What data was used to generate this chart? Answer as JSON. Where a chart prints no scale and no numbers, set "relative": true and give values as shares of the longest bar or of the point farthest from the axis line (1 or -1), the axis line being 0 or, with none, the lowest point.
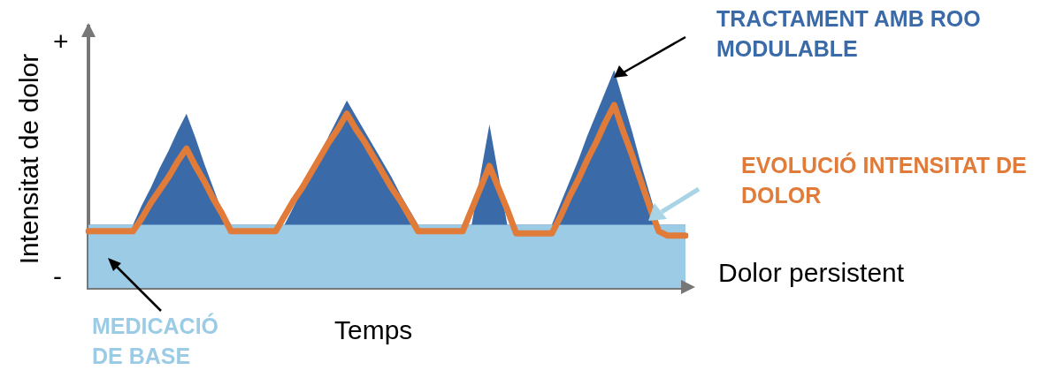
{
  "chart_data": {
    "type": "area",
    "xlabel": "Temps",
    "ylabel": "Intensitat de dolor",
    "relative": true,
    "legend": false,
    "grid": false,
    "categories": [
      null,
      null,
      null,
      null,
      null,
      null,
      null,
      null,
      null,
      null,
      null,
      null,
      null,
      null,
      null,
      null,
      null,
      null,
      null,
      null,
      null,
      null,
      null,
      null,
      null,
      null,
      null,
      null,
      null,
      null,
      null,
      null,
      null,
      null,
      null,
      null,
      null,
      null,
      null,
      null,
      null,
      null,
      null,
      null,
      null,
      null,
      null,
      null,
      null,
      null,
      null,
      null,
      null,
      null,
      null,
      null,
      null,
      null,
      null,
      null,
      null,
      null,
      null,
      null,
      null,
      null,
      null,
      null
    ],
    "series": [
      {
        "name": "TRACTAMENT AMB ROO MODULABLE",
        "type": "area",
        "color": "#3a6aa8",
        "values": [
          0.29,
          0.29,
          0.29,
          0.29,
          0.29,
          0.29,
          0.38,
          0.46,
          0.55,
          0.63,
          0.72,
          0.8,
          0.69,
          0.57,
          0.46,
          0.35,
          0.29,
          0.29,
          0.29,
          0.29,
          0.29,
          0.29,
          0.29,
          0.37,
          0.45,
          0.53,
          0.61,
          0.7,
          0.78,
          0.86,
          0.79,
          0.72,
          0.65,
          0.58,
          0.51,
          0.43,
          0.36,
          0.29,
          0.29,
          0.29,
          0.29,
          0.29,
          0.29,
          0.29,
          0.52,
          0.75,
          0.52,
          0.29,
          0.29,
          0.29,
          0.29,
          0.29,
          0.29,
          0.39,
          0.49,
          0.59,
          0.7,
          0.8,
          0.9,
          1,
          0.86,
          0.72,
          0.57,
          0.43,
          0.29,
          0.29,
          0.29,
          0.29
        ]
      },
      {
        "name": "MEDICACIÓ DE BASE",
        "type": "area",
        "color": "#9ccbe6",
        "values": [
          0.29,
          0.29,
          0.29,
          0.29,
          0.29,
          0.29,
          0.29,
          0.29,
          0.29,
          0.29,
          0.29,
          0.29,
          0.29,
          0.29,
          0.29,
          0.29,
          0.29,
          0.29,
          0.29,
          0.29,
          0.29,
          0.29,
          0.29,
          0.29,
          0.29,
          0.29,
          0.29,
          0.29,
          0.29,
          0.29,
          0.29,
          0.29,
          0.29,
          0.29,
          0.29,
          0.29,
          0.29,
          0.29,
          0.29,
          0.29,
          0.29,
          0.29,
          0.29,
          0.29,
          0.29,
          0.29,
          0.29,
          0.29,
          0.29,
          0.29,
          0.29,
          0.29,
          0.29,
          0.29,
          0.29,
          0.29,
          0.29,
          0.29,
          0.29,
          0.29,
          0.29,
          0.29,
          0.29,
          0.29,
          0.29,
          0.29,
          0.29,
          0.29
        ]
      },
      {
        "name": "EVOLUCIÓ INTENSITAT DE DOLOR",
        "type": "line",
        "color": "#e07b39",
        "values": [
          0.26,
          0.26,
          0.26,
          0.26,
          0.26,
          0.26,
          0.32,
          0.39,
          0.45,
          0.51,
          0.58,
          0.64,
          0.56,
          0.49,
          0.41,
          0.34,
          0.26,
          0.26,
          0.26,
          0.26,
          0.26,
          0.26,
          0.33,
          0.4,
          0.46,
          0.53,
          0.6,
          0.67,
          0.73,
          0.8,
          0.73,
          0.67,
          0.6,
          0.53,
          0.46,
          0.4,
          0.33,
          0.26,
          0.26,
          0.26,
          0.26,
          0.26,
          0.26,
          0.36,
          0.46,
          0.56,
          0.46,
          0.36,
          0.25,
          0.25,
          0.25,
          0.25,
          0.25,
          0.33,
          0.42,
          0.5,
          0.59,
          0.67,
          0.76,
          0.84,
          0.72,
          0.61,
          0.49,
          0.37,
          0.26,
          0.24,
          0.24,
          0.24
        ]
      }
    ],
    "annotations": [
      "+",
      "-",
      "Dolor persistent"
    ]
  }
}
